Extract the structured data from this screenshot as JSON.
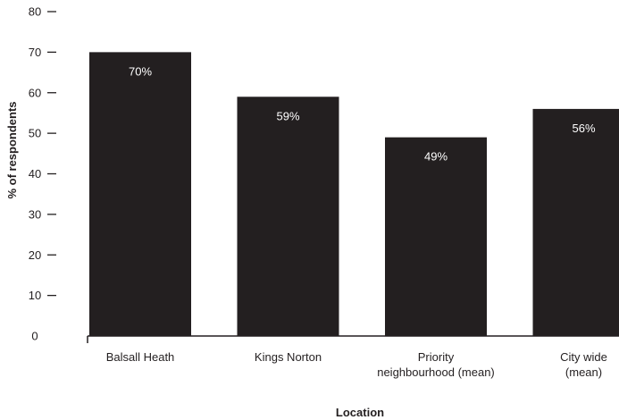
{
  "chart_data": {
    "type": "bar",
    "categories": [
      [
        "Balsall Heath"
      ],
      [
        "Kings Norton"
      ],
      [
        "Priority",
        "neighbourhood (mean)"
      ],
      [
        "City wide",
        "(mean)"
      ]
    ],
    "values": [
      70,
      59,
      49,
      56
    ],
    "data_labels": [
      "70%",
      "59%",
      "49%",
      "56%"
    ],
    "title": "",
    "xlabel": "Location",
    "ylabel": "% of respondents",
    "ylim": [
      0,
      80
    ],
    "yticks": [
      0,
      10,
      20,
      30,
      40,
      50,
      60,
      70,
      80
    ],
    "grid": false,
    "legend": "none",
    "colors": {
      "bar": "#231f20",
      "bar_label": "#ffffff",
      "axis": "#231f20"
    }
  }
}
